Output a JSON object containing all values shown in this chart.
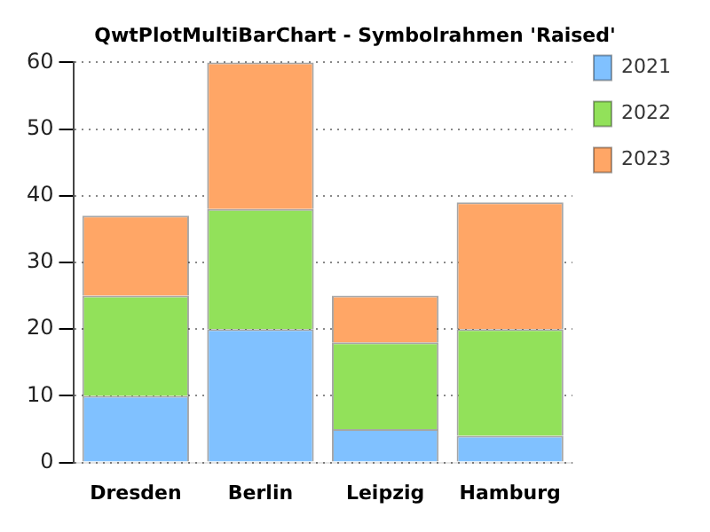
{
  "chart_data": {
    "type": "bar",
    "title": "QwtPlotMultiBarChart - Symbolrahmen 'Raised'",
    "categories": [
      "Dresden",
      "Berlin",
      "Leipzig",
      "Hamburg"
    ],
    "stacked": true,
    "series": [
      {
        "name": "2021",
        "color": "#80c1ff",
        "values": [
          10,
          20,
          5,
          4
        ]
      },
      {
        "name": "2022",
        "color": "#92e15a",
        "values": [
          15,
          18,
          13,
          16
        ]
      },
      {
        "name": "2023",
        "color": "#ffa666",
        "values": [
          12,
          22,
          7,
          19
        ]
      }
    ],
    "ylim": [
      0,
      60
    ],
    "yticks": [
      0,
      10,
      20,
      30,
      40,
      50,
      60
    ],
    "grid": "y",
    "legend": "right"
  }
}
